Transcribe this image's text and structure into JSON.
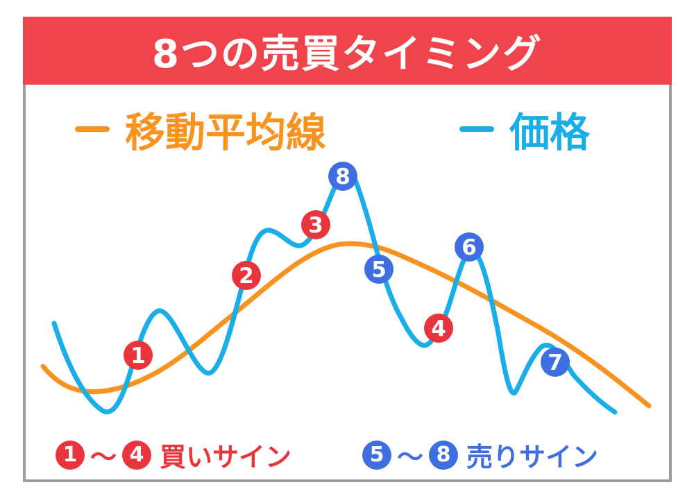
{
  "title": "8つの売買タイミング",
  "legend": {
    "ma": {
      "label": "移動平均線",
      "color": "#f7931e"
    },
    "price": {
      "label": "価格",
      "color": "#19aee8"
    }
  },
  "colors": {
    "buy": "#e8353b",
    "sell": "#3f6ee0",
    "title_bg": "#f0444c",
    "frame": "#9e9e9e"
  },
  "markers": [
    {
      "label": "1",
      "type": "buy"
    },
    {
      "label": "2",
      "type": "buy"
    },
    {
      "label": "3",
      "type": "buy"
    },
    {
      "label": "4",
      "type": "buy"
    },
    {
      "label": "5",
      "type": "sell"
    },
    {
      "label": "6",
      "type": "sell"
    },
    {
      "label": "7",
      "type": "sell"
    },
    {
      "label": "8",
      "type": "sell"
    }
  ],
  "footer": {
    "buy": {
      "from": "1",
      "sep": "～",
      "to": "4",
      "text": "買いサイン"
    },
    "sell": {
      "from": "5",
      "sep": "～",
      "to": "8",
      "text": "売りサイン"
    }
  }
}
